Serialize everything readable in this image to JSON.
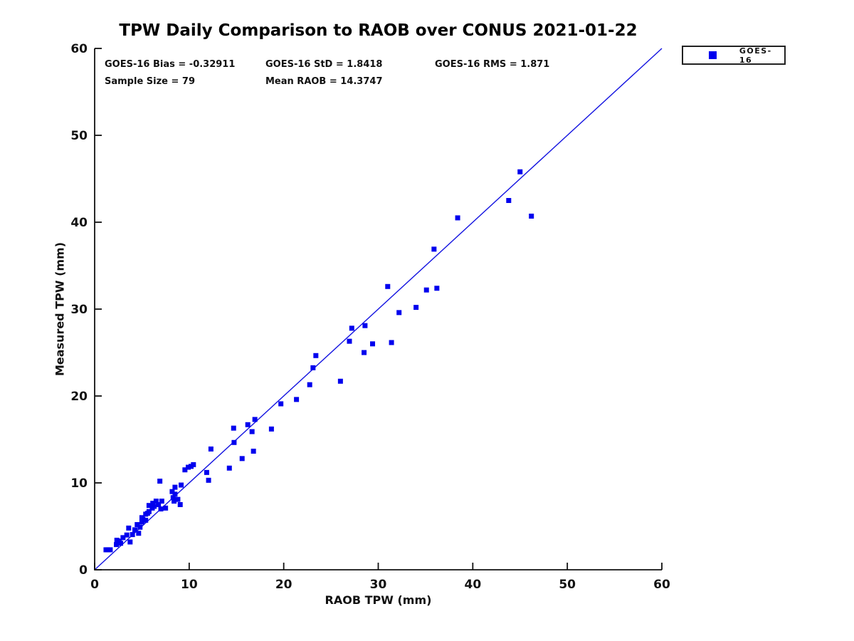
{
  "stats": {
    "bias": "GOES-16 Bias = -0.32911",
    "std": "GOES-16 StD = 1.8418",
    "rms": "GOES-16 RMS = 1.871",
    "sample_size": "Sample Size = 79",
    "mean_raob": "Mean RAOB = 14.3747"
  },
  "chart_data": {
    "type": "scatter",
    "title": "TPW Daily Comparison to RAOB over CONUS 2021-01-22",
    "xlabel": "RAOB TPW (mm)",
    "ylabel": "Measured TPW (mm)",
    "xlim": [
      0,
      60
    ],
    "ylim": [
      0,
      60
    ],
    "xticks": [
      0,
      10,
      20,
      30,
      40,
      50,
      60
    ],
    "yticks": [
      0,
      10,
      20,
      30,
      40,
      50,
      60
    ],
    "grid": false,
    "legend": {
      "position": "outside-upper-right",
      "entries": [
        {
          "label": "GOES-16",
          "marker": "square",
          "color": "#0000ee"
        }
      ]
    },
    "reference_line": {
      "type": "identity",
      "from": [
        0,
        0
      ],
      "to": [
        60,
        60
      ],
      "color": "#1212e0"
    },
    "series": [
      {
        "name": "GOES-16",
        "marker": "square",
        "marker_size": 7,
        "color": "#0000ee",
        "points": [
          [
            1.2,
            2.3
          ],
          [
            1.4,
            2.3
          ],
          [
            1.65,
            2.3
          ],
          [
            2.3,
            2.9
          ],
          [
            2.35,
            3.4
          ],
          [
            2.6,
            3.3
          ],
          [
            2.75,
            3.05
          ],
          [
            3.0,
            3.7
          ],
          [
            3.4,
            4.0
          ],
          [
            3.75,
            3.2
          ],
          [
            4.0,
            4.05
          ],
          [
            3.6,
            4.8
          ],
          [
            4.25,
            4.6
          ],
          [
            4.65,
            4.2
          ],
          [
            4.5,
            5.2
          ],
          [
            4.8,
            4.9
          ],
          [
            5.0,
            5.5
          ],
          [
            5.0,
            6.0
          ],
          [
            5.1,
            5.8
          ],
          [
            5.4,
            5.7
          ],
          [
            5.4,
            6.4
          ],
          [
            5.6,
            6.5
          ],
          [
            5.75,
            6.7
          ],
          [
            5.75,
            7.4
          ],
          [
            6.1,
            7.1
          ],
          [
            6.15,
            7.65
          ],
          [
            6.3,
            7.3
          ],
          [
            6.5,
            7.9
          ],
          [
            6.75,
            7.5
          ],
          [
            7.0,
            7.0
          ],
          [
            7.1,
            7.9
          ],
          [
            7.5,
            7.1
          ],
          [
            6.9,
            10.2
          ],
          [
            8.2,
            9.0
          ],
          [
            8.3,
            8.3
          ],
          [
            8.4,
            7.9
          ],
          [
            8.5,
            8.7
          ],
          [
            8.5,
            9.5
          ],
          [
            8.8,
            8.1
          ],
          [
            9.05,
            7.5
          ],
          [
            9.15,
            9.75
          ],
          [
            9.55,
            11.5
          ],
          [
            9.9,
            11.8
          ],
          [
            10.2,
            11.9
          ],
          [
            10.45,
            12.1
          ],
          [
            11.85,
            11.2
          ],
          [
            12.05,
            10.3
          ],
          [
            12.3,
            13.9
          ],
          [
            14.25,
            11.7
          ],
          [
            14.7,
            16.3
          ],
          [
            14.75,
            14.65
          ],
          [
            15.6,
            12.8
          ],
          [
            16.2,
            16.7
          ],
          [
            16.65,
            15.9
          ],
          [
            16.8,
            13.65
          ],
          [
            16.95,
            17.3
          ],
          [
            18.7,
            16.2
          ],
          [
            19.7,
            19.1
          ],
          [
            21.35,
            19.6
          ],
          [
            22.75,
            21.3
          ],
          [
            23.1,
            23.25
          ],
          [
            23.4,
            24.65
          ],
          [
            26.0,
            21.7
          ],
          [
            26.95,
            26.3
          ],
          [
            27.2,
            27.8
          ],
          [
            28.6,
            28.1
          ],
          [
            28.5,
            25.0
          ],
          [
            29.4,
            26.0
          ],
          [
            31.4,
            26.15
          ],
          [
            31.0,
            32.6
          ],
          [
            32.2,
            29.6
          ],
          [
            34.0,
            30.2
          ],
          [
            35.1,
            32.2
          ],
          [
            36.2,
            32.4
          ],
          [
            35.9,
            36.9
          ],
          [
            38.4,
            40.5
          ],
          [
            43.8,
            42.5
          ],
          [
            45.0,
            45.8
          ],
          [
            46.2,
            40.7
          ]
        ]
      }
    ]
  }
}
